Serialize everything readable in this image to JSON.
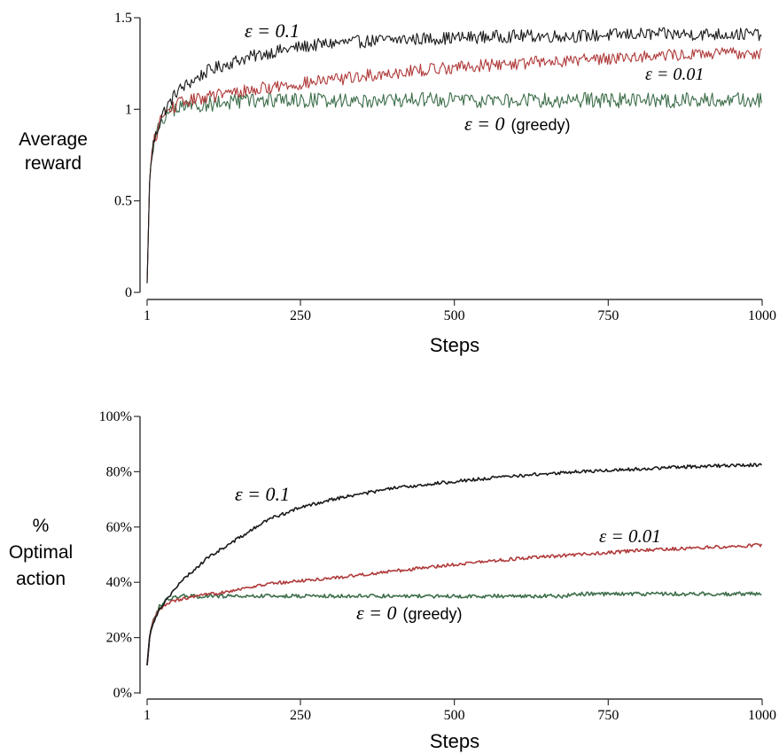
{
  "chart_data": [
    {
      "type": "line",
      "xlabel": "Steps",
      "ylabel_lines": [
        "Average",
        "reward"
      ],
      "xlim": [
        1,
        1000
      ],
      "ylim": [
        0,
        1.5
      ],
      "x_ticks": [
        1,
        250,
        500,
        750,
        1000
      ],
      "y_ticks": [
        0,
        0.5,
        1,
        1.5
      ],
      "y_tick_labels": [
        "0",
        "0.5",
        "1",
        "1.5"
      ],
      "noise": 0.035,
      "series": [
        {
          "name": "ε = 0.1",
          "label_math": "ε = 0.1",
          "label_suffix": "",
          "color": "#1a1a1a",
          "points": [
            [
              1,
              0.05
            ],
            [
              5,
              0.6
            ],
            [
              10,
              0.8
            ],
            [
              25,
              0.97
            ],
            [
              50,
              1.1
            ],
            [
              100,
              1.21
            ],
            [
              150,
              1.27
            ],
            [
              200,
              1.31
            ],
            [
              250,
              1.34
            ],
            [
              300,
              1.36
            ],
            [
              400,
              1.38
            ],
            [
              500,
              1.39
            ],
            [
              600,
              1.4
            ],
            [
              700,
              1.4
            ],
            [
              800,
              1.41
            ],
            [
              900,
              1.41
            ],
            [
              1000,
              1.41
            ]
          ]
        },
        {
          "name": "ε = 0.01",
          "label_math": "ε = 0.01",
          "label_suffix": "",
          "color": "#b03a3a",
          "points": [
            [
              1,
              0.05
            ],
            [
              5,
              0.6
            ],
            [
              10,
              0.8
            ],
            [
              25,
              0.96
            ],
            [
              50,
              1.03
            ],
            [
              100,
              1.07
            ],
            [
              200,
              1.12
            ],
            [
              300,
              1.16
            ],
            [
              400,
              1.2
            ],
            [
              500,
              1.23
            ],
            [
              600,
              1.25
            ],
            [
              700,
              1.27
            ],
            [
              800,
              1.29
            ],
            [
              900,
              1.3
            ],
            [
              1000,
              1.31
            ]
          ]
        },
        {
          "name": "ε = 0 (greedy)",
          "label_math": "ε = 0",
          "label_suffix": "(greedy)",
          "color": "#3d6e4a",
          "points": [
            [
              1,
              0.05
            ],
            [
              5,
              0.6
            ],
            [
              10,
              0.8
            ],
            [
              25,
              0.95
            ],
            [
              50,
              1.01
            ],
            [
              100,
              1.03
            ],
            [
              150,
              1.04
            ],
            [
              200,
              1.05
            ],
            [
              1000,
              1.05
            ]
          ]
        }
      ]
    },
    {
      "type": "line",
      "xlabel": "Steps",
      "ylabel_lines": [
        "%",
        "Optimal",
        "action"
      ],
      "xlim": [
        1,
        1000
      ],
      "ylim": [
        0,
        100
      ],
      "x_ticks": [
        1,
        250,
        500,
        750,
        1000
      ],
      "y_ticks": [
        0,
        20,
        40,
        60,
        80,
        100
      ],
      "y_tick_labels": [
        "0%",
        "20%",
        "40%",
        "60%",
        "80%",
        "100%"
      ],
      "noise": 0.6,
      "series": [
        {
          "name": "ε = 0.1",
          "label_math": "ε = 0.1",
          "label_suffix": "",
          "color": "#1a1a1a",
          "points": [
            [
              1,
              10
            ],
            [
              5,
              20
            ],
            [
              10,
              25
            ],
            [
              20,
              30
            ],
            [
              40,
              36
            ],
            [
              60,
              41
            ],
            [
              80,
              45
            ],
            [
              100,
              49
            ],
            [
              150,
              56
            ],
            [
              200,
              63
            ],
            [
              250,
              67
            ],
            [
              300,
              70
            ],
            [
              400,
              74
            ],
            [
              500,
              76.5
            ],
            [
              600,
              78.5
            ],
            [
              700,
              80
            ],
            [
              800,
              81
            ],
            [
              900,
              82
            ],
            [
              1000,
              82.5
            ]
          ]
        },
        {
          "name": "ε = 0.01",
          "label_math": "ε = 0.01",
          "label_suffix": "",
          "color": "#b03a3a",
          "points": [
            [
              1,
              10
            ],
            [
              5,
              20
            ],
            [
              10,
              25
            ],
            [
              20,
              30
            ],
            [
              40,
              33
            ],
            [
              70,
              34.5
            ],
            [
              100,
              35.5
            ],
            [
              150,
              37.5
            ],
            [
              200,
              39.5
            ],
            [
              250,
              40.5
            ],
            [
              300,
              41.5
            ],
            [
              400,
              44
            ],
            [
              500,
              46.5
            ],
            [
              600,
              48.5
            ],
            [
              700,
              50
            ],
            [
              800,
              51.5
            ],
            [
              900,
              52.5
            ],
            [
              1000,
              53.5
            ]
          ]
        },
        {
          "name": "ε = 0 (greedy)",
          "label_math": "ε = 0",
          "label_suffix": "(greedy)",
          "color": "#3d6e4a",
          "points": [
            [
              1,
              10
            ],
            [
              5,
              20
            ],
            [
              10,
              26
            ],
            [
              20,
              31
            ],
            [
              35,
              34
            ],
            [
              60,
              35
            ],
            [
              100,
              35
            ],
            [
              680,
              35
            ],
            [
              690,
              35.8
            ],
            [
              1000,
              35.8
            ]
          ]
        }
      ]
    }
  ]
}
